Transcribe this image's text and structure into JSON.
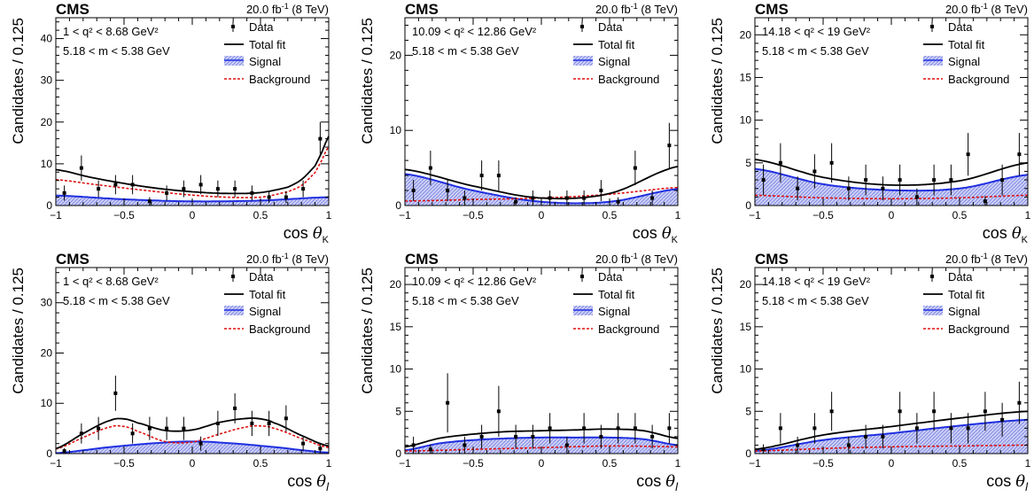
{
  "colors": {
    "data": "#000000",
    "total_fit": "#000000",
    "signal_line": "#1f2fe0",
    "signal_fill": "#c8ccf4",
    "background": "#e01010"
  },
  "common": {
    "experiment": "CMS",
    "lumi": "20.0 fb",
    "lumi_sup": "-1",
    "energy": "(8 TeV)",
    "ylabel": "Candidates / 0.125",
    "mass_window": "5.18 < m < 5.38 GeV",
    "legend": [
      "Data",
      "Total fit",
      "Signal",
      "Background"
    ]
  },
  "chart_data": [
    {
      "type": "scatter",
      "panel": "top-left",
      "q2_range": "1 < q² < 8.68 GeV²",
      "xlabel": "cos θK",
      "xlim": [
        -1,
        1
      ],
      "ylim": [
        0,
        45
      ],
      "xticks": [
        "−1",
        "−0.5",
        "0",
        "0.5",
        "1"
      ],
      "yticks": [
        0,
        10,
        20,
        30,
        40
      ],
      "legend_position": "top-right",
      "grid": false,
      "data": {
        "x": [
          -0.9375,
          -0.8125,
          -0.6875,
          -0.5625,
          -0.4375,
          -0.3125,
          -0.1875,
          -0.0625,
          0.0625,
          0.1875,
          0.3125,
          0.4375,
          0.5625,
          0.6875,
          0.8125,
          0.9375
        ],
        "y": [
          3,
          9,
          4,
          5,
          5,
          1,
          3,
          4,
          5,
          4,
          4,
          3,
          2,
          2,
          4,
          16
        ],
        "err": [
          1.8,
          3.0,
          2.0,
          2.3,
          2.3,
          1.0,
          1.8,
          2.0,
          2.3,
          2.0,
          2.0,
          1.8,
          1.4,
          1.4,
          2.0,
          4.0
        ]
      },
      "total_fit": {
        "x": [
          -1,
          -0.75,
          -0.5,
          -0.25,
          0,
          0.25,
          0.5,
          0.7,
          0.8,
          0.9,
          0.95,
          1
        ],
        "y": [
          8.6,
          6.8,
          5.3,
          4.1,
          3.3,
          2.9,
          3.1,
          4.4,
          6.2,
          9.5,
          12.8,
          16.6
        ]
      },
      "signal": {
        "x": [
          -1,
          -0.5,
          0,
          0.5,
          1
        ],
        "y": [
          2.4,
          1.5,
          1.0,
          1.2,
          2.0
        ]
      },
      "background": {
        "x": [
          -1,
          -0.75,
          -0.5,
          -0.25,
          0,
          0.25,
          0.5,
          0.7,
          0.8,
          0.9,
          0.95,
          1
        ],
        "y": [
          6.2,
          5.2,
          4.2,
          3.3,
          2.5,
          2.0,
          2.0,
          3.3,
          4.8,
          7.9,
          10.9,
          14.2
        ]
      }
    },
    {
      "type": "scatter",
      "panel": "top-middle",
      "q2_range": "10.09 < q² < 12.86 GeV²",
      "xlabel": "cos θK",
      "xlim": [
        -1,
        1
      ],
      "ylim": [
        0,
        25
      ],
      "xticks": [
        "−1",
        "−0.5",
        "0",
        "0.5",
        "1"
      ],
      "yticks": [
        0,
        10,
        20
      ],
      "legend_position": "top-right",
      "grid": false,
      "data": {
        "x": [
          -0.9375,
          -0.8125,
          -0.6875,
          -0.5625,
          -0.4375,
          -0.3125,
          -0.1875,
          -0.0625,
          0.0625,
          0.1875,
          0.3125,
          0.4375,
          0.5625,
          0.6875,
          0.8125,
          0.9375
        ],
        "y": [
          2,
          5,
          2,
          1,
          4,
          4,
          0.5,
          1,
          1,
          1,
          1,
          2,
          0.5,
          5,
          1,
          8
        ],
        "err": [
          1.4,
          2.3,
          1.4,
          1.0,
          2.0,
          2.0,
          0.6,
          1.0,
          1.0,
          1.0,
          1.0,
          1.4,
          0.6,
          2.3,
          1.0,
          3.0
        ]
      },
      "total_fit": {
        "x": [
          -1,
          -0.5,
          0,
          0.5,
          1
        ],
        "y": [
          4.8,
          2.6,
          1.0,
          1.6,
          5.2
        ]
      },
      "signal": {
        "x": [
          -1,
          -0.5,
          0,
          0.5,
          1
        ],
        "y": [
          4.2,
          2.0,
          0.5,
          0.5,
          2.2
        ]
      },
      "background": {
        "x": [
          -1,
          -0.5,
          0,
          0.5,
          1
        ],
        "y": [
          0.6,
          0.8,
          1.0,
          1.5,
          2.4
        ]
      }
    },
    {
      "type": "scatter",
      "panel": "top-right",
      "q2_range": "14.18 < q² < 19 GeV²",
      "xlabel": "cos θK",
      "xlim": [
        -1,
        1
      ],
      "ylim": [
        0,
        22
      ],
      "xticks": [
        "−1",
        "−0.5",
        "0",
        "0.5",
        "1"
      ],
      "yticks": [
        0,
        5,
        10,
        15,
        20
      ],
      "legend_position": "top-right",
      "grid": false,
      "data": {
        "x": [
          -0.9375,
          -0.8125,
          -0.6875,
          -0.5625,
          -0.4375,
          -0.3125,
          -0.1875,
          -0.0625,
          0.0625,
          0.1875,
          0.3125,
          0.4375,
          0.5625,
          0.6875,
          0.8125,
          0.9375
        ],
        "y": [
          3,
          5,
          2,
          4,
          5,
          2,
          3,
          2,
          3,
          1,
          3,
          3,
          6,
          0.5,
          3,
          6
        ],
        "err": [
          1.8,
          2.3,
          1.4,
          2.0,
          2.3,
          1.4,
          1.8,
          1.4,
          1.8,
          1.0,
          1.8,
          1.8,
          2.5,
          0.6,
          1.8,
          2.5
        ]
      },
      "total_fit": {
        "x": [
          -1,
          -0.5,
          0,
          0.5,
          1
        ],
        "y": [
          5.4,
          3.3,
          2.4,
          2.9,
          5.0
        ]
      },
      "signal": {
        "x": [
          -1,
          -0.5,
          0,
          0.5,
          1
        ],
        "y": [
          4.3,
          2.5,
          1.8,
          2.0,
          3.6
        ]
      },
      "background": {
        "x": [
          -1,
          -0.5,
          0,
          0.5,
          1
        ],
        "y": [
          1.2,
          0.9,
          0.8,
          0.9,
          1.2
        ]
      }
    },
    {
      "type": "scatter",
      "panel": "bottom-left",
      "q2_range": "1 < q² < 8.68 GeV²",
      "xlabel": "cos θl",
      "xlim": [
        -1,
        1
      ],
      "ylim": [
        0,
        37
      ],
      "xticks": [
        "−1",
        "−0.5",
        "0",
        "0.5",
        "1"
      ],
      "yticks": [
        0,
        10,
        20,
        30
      ],
      "legend_position": "top-right",
      "grid": false,
      "data": {
        "x": [
          -0.9375,
          -0.8125,
          -0.6875,
          -0.5625,
          -0.4375,
          -0.3125,
          -0.1875,
          -0.0625,
          0.0625,
          0.1875,
          0.3125,
          0.4375,
          0.5625,
          0.6875,
          0.8125,
          0.9375
        ],
        "y": [
          0.5,
          4,
          5,
          12,
          4,
          5,
          5,
          5,
          2,
          6,
          9,
          6,
          6,
          7,
          2,
          1
        ],
        "err": [
          0.6,
          2.0,
          2.3,
          3.5,
          2.0,
          2.3,
          2.3,
          2.3,
          1.4,
          2.5,
          3.0,
          2.5,
          2.5,
          2.6,
          1.4,
          1.0
        ]
      },
      "total_fit": {
        "x": [
          -1,
          -0.8,
          -0.6,
          -0.5,
          -0.4,
          -0.2,
          0,
          0.2,
          0.4,
          0.5,
          0.6,
          0.8,
          1
        ],
        "y": [
          1.0,
          4.0,
          6.6,
          6.9,
          6.1,
          4.6,
          4.7,
          6.2,
          7.0,
          6.9,
          6.1,
          3.6,
          1.5
        ]
      },
      "signal": {
        "x": [
          -1,
          -0.6,
          -0.2,
          0,
          0.2,
          0.6,
          1
        ],
        "y": [
          0.1,
          1.3,
          2.2,
          2.4,
          2.2,
          1.3,
          0.2
        ]
      },
      "background": {
        "x": [
          -1,
          -0.8,
          -0.6,
          -0.5,
          -0.4,
          -0.2,
          0,
          0.2,
          0.4,
          0.5,
          0.6,
          0.8,
          1
        ],
        "y": [
          0.9,
          3.2,
          5.3,
          5.4,
          4.4,
          2.4,
          2.3,
          3.9,
          5.3,
          5.5,
          5.0,
          3.0,
          1.2
        ]
      }
    },
    {
      "type": "scatter",
      "panel": "bottom-middle",
      "q2_range": "10.09 < q² < 12.86 GeV²",
      "xlabel": "cos θl",
      "xlim": [
        -1,
        1
      ],
      "ylim": [
        0,
        22
      ],
      "xticks": [
        "−1",
        "−0.5",
        "0",
        "0.5",
        "1"
      ],
      "yticks": [
        0,
        5,
        10,
        15,
        20
      ],
      "legend_position": "top-right",
      "grid": false,
      "data": {
        "x": [
          -0.9375,
          -0.8125,
          -0.6875,
          -0.5625,
          -0.4375,
          -0.3125,
          -0.1875,
          -0.0625,
          0.0625,
          0.1875,
          0.3125,
          0.4375,
          0.5625,
          0.6875,
          0.8125,
          0.9375
        ],
        "y": [
          1,
          0.5,
          6,
          1,
          2,
          5,
          2,
          2,
          3,
          1,
          3,
          2,
          3,
          3,
          2,
          3
        ],
        "err": [
          1.0,
          0.6,
          3.5,
          1.0,
          1.4,
          3.0,
          1.4,
          1.4,
          1.8,
          1.0,
          1.8,
          1.4,
          1.8,
          1.8,
          1.4,
          1.8
        ]
      },
      "total_fit": {
        "x": [
          -1,
          -0.75,
          -0.5,
          -0.25,
          0,
          0.25,
          0.5,
          0.75,
          1
        ],
        "y": [
          0.8,
          1.8,
          2.3,
          2.6,
          2.7,
          2.8,
          2.9,
          2.7,
          1.8
        ]
      },
      "signal": {
        "x": [
          -1,
          -0.75,
          -0.5,
          -0.25,
          0,
          0.25,
          0.5,
          0.75,
          1
        ],
        "y": [
          0.4,
          1.2,
          1.6,
          1.8,
          1.9,
          1.9,
          1.9,
          1.7,
          1.0
        ]
      },
      "background": {
        "x": [
          -1,
          -0.5,
          0,
          0.5,
          1
        ],
        "y": [
          0.3,
          0.5,
          0.7,
          0.9,
          0.8
        ]
      }
    },
    {
      "type": "scatter",
      "panel": "bottom-right",
      "q2_range": "14.18 < q² < 19 GeV²",
      "xlabel": "cos θl",
      "xlim": [
        -1,
        1
      ],
      "ylim": [
        0,
        22
      ],
      "xticks": [
        "−1",
        "−0.5",
        "0",
        "0.5",
        "1"
      ],
      "yticks": [
        0,
        5,
        10,
        15,
        20
      ],
      "legend_position": "top-right",
      "grid": false,
      "data": {
        "x": [
          -0.9375,
          -0.8125,
          -0.6875,
          -0.5625,
          -0.4375,
          -0.3125,
          -0.1875,
          -0.0625,
          0.0625,
          0.1875,
          0.3125,
          0.4375,
          0.5625,
          0.6875,
          0.8125,
          0.9375
        ],
        "y": [
          0.5,
          3,
          1,
          3,
          5,
          1,
          2,
          2,
          5,
          3,
          5,
          3,
          3,
          5,
          4,
          6
        ],
        "err": [
          0.6,
          1.8,
          1.0,
          1.8,
          2.3,
          1.0,
          1.4,
          1.4,
          2.3,
          1.8,
          2.3,
          1.8,
          1.8,
          2.3,
          2.0,
          2.5
        ]
      },
      "total_fit": {
        "x": [
          -1,
          -0.5,
          0,
          0.5,
          1
        ],
        "y": [
          0.5,
          2.2,
          3.2,
          4.2,
          5.0
        ]
      },
      "signal": {
        "x": [
          -1,
          -0.5,
          0,
          0.5,
          1
        ],
        "y": [
          0.3,
          1.6,
          2.4,
          3.3,
          4.0
        ]
      },
      "background": {
        "x": [
          -1,
          -0.5,
          0,
          0.5,
          1
        ],
        "y": [
          0.3,
          0.6,
          0.8,
          0.9,
          1.0
        ]
      }
    }
  ]
}
